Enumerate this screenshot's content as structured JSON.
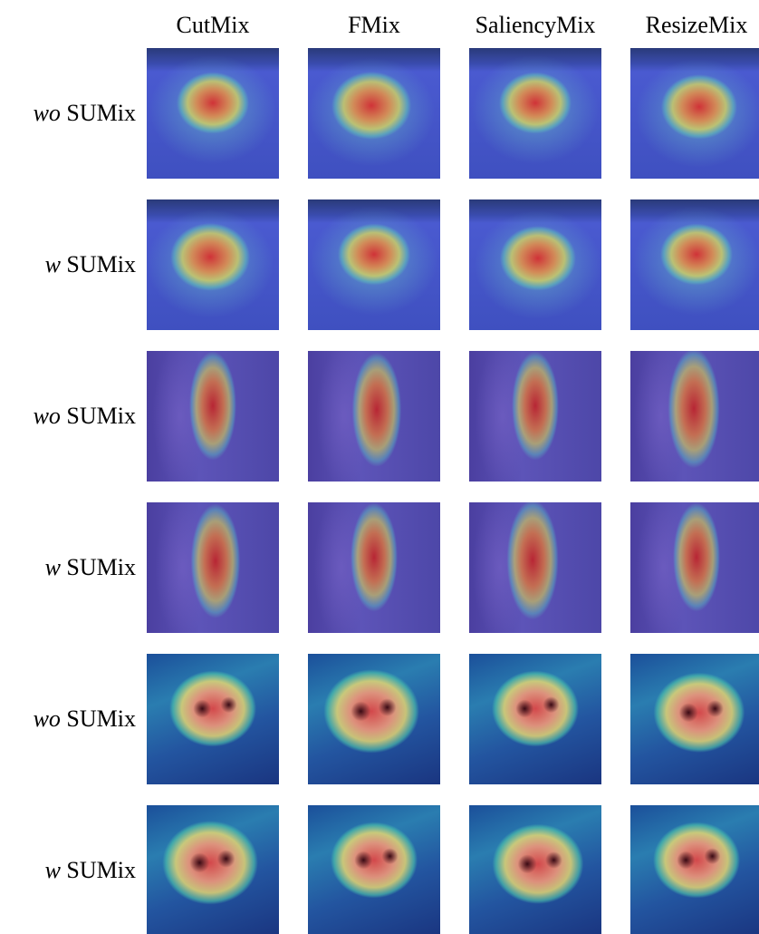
{
  "columns": [
    "CutMix",
    "FMix",
    "SaliencyMix",
    "ResizeMix"
  ],
  "rows": [
    {
      "prefix": "wo",
      "label": "SUMix"
    },
    {
      "prefix": "w",
      "label": "SUMix"
    },
    {
      "prefix": "wo",
      "label": "SUMix"
    },
    {
      "prefix": "w",
      "label": "SUMix"
    },
    {
      "prefix": "wo",
      "label": "SUMix"
    },
    {
      "prefix": "w",
      "label": "SUMix"
    }
  ]
}
